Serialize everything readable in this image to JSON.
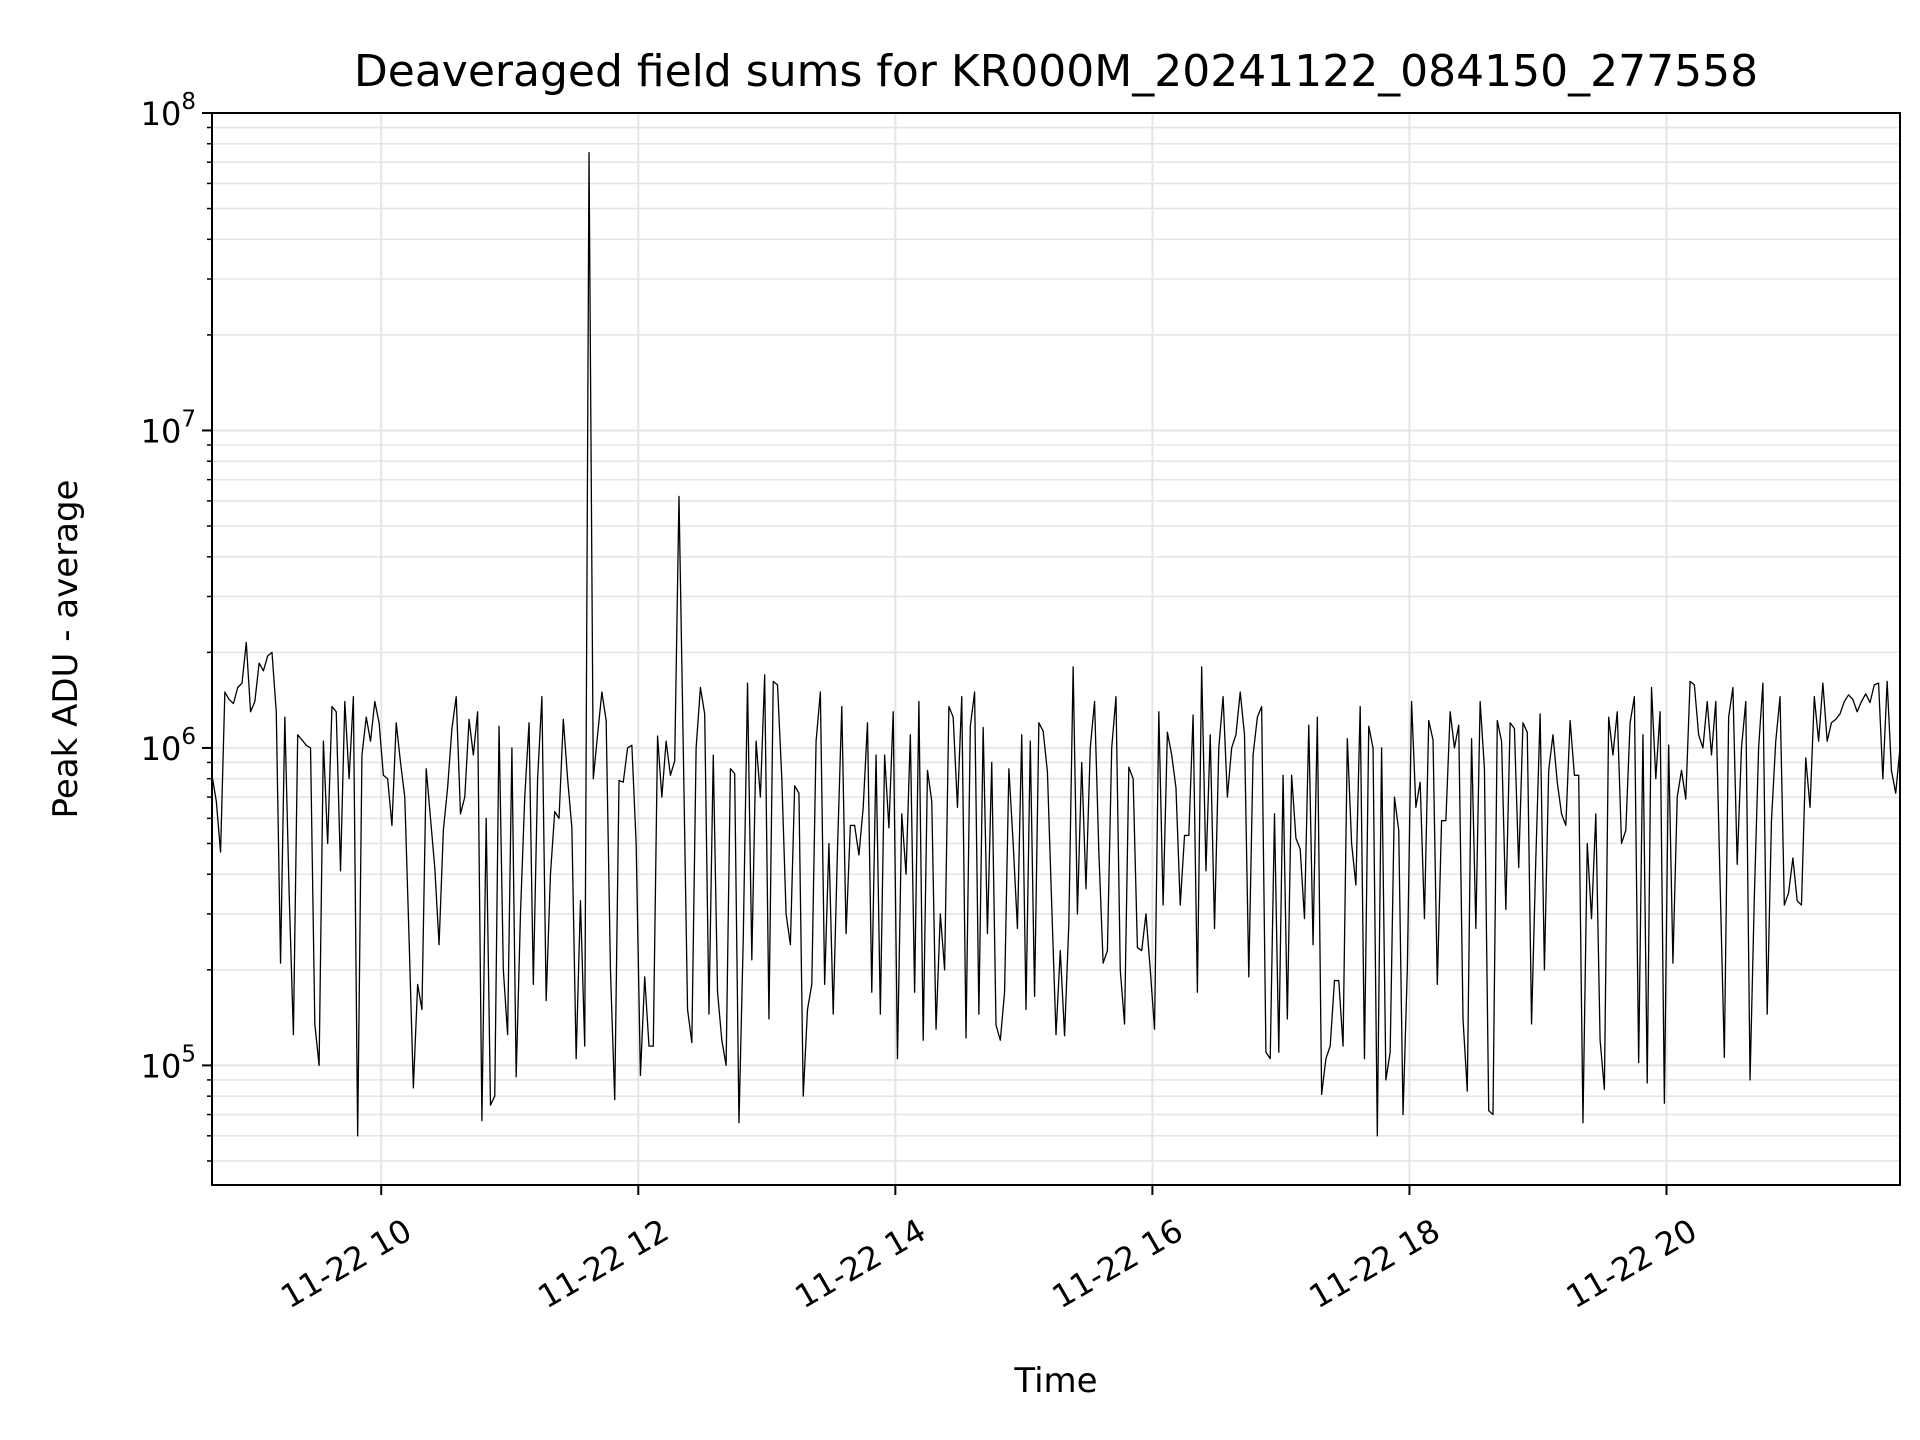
{
  "chart_data": {
    "type": "line",
    "title": "Deaveraged field sums for KR000M_20241122_084150_277558",
    "xlabel": "Time",
    "ylabel": "Peak ADU - average",
    "y_scale": "log",
    "ylim": [
      42000,
      100000000
    ],
    "xlim": [
      "2024-11-22 08:41",
      "2024-11-22 21:49"
    ],
    "grid": true,
    "x_ticks": [
      {
        "x": "2024-11-22 10:00",
        "label": "11-22 10"
      },
      {
        "x": "2024-11-22 12:00",
        "label": "11-22 12"
      },
      {
        "x": "2024-11-22 14:00",
        "label": "11-22 14"
      },
      {
        "x": "2024-11-22 16:00",
        "label": "11-22 16"
      },
      {
        "x": "2024-11-22 18:00",
        "label": "11-22 18"
      },
      {
        "x": "2024-11-22 20:00",
        "label": "11-22 20"
      }
    ],
    "y_ticks": [
      {
        "y": 100000,
        "base": "10",
        "exp": "5"
      },
      {
        "y": 1000000,
        "base": "10",
        "exp": "6"
      },
      {
        "y": 10000000,
        "base": "10",
        "exp": "7"
      },
      {
        "y": 100000000,
        "base": "10",
        "exp": "8"
      }
    ],
    "line_color": "#000000",
    "grid_color": "#e5e5e5",
    "series": [
      {
        "x_start": "2024-11-22 08:41",
        "x_end": "2024-11-22 21:49",
        "values": [
          820000,
          680000,
          470000,
          1500000,
          1420000,
          1380000,
          1550000,
          1600000,
          2150000,
          1300000,
          1400000,
          1850000,
          1750000,
          1950000,
          2000000,
          1300000,
          210000,
          1250000,
          350000,
          125000,
          1100000,
          1060000,
          1020000,
          1000000,
          135000,
          100000,
          1050000,
          500000,
          1350000,
          1300000,
          410000,
          1400000,
          800000,
          1450000,
          60000,
          950000,
          1250000,
          1050000,
          1400000,
          1200000,
          820000,
          800000,
          570000,
          1200000,
          900000,
          700000,
          250000,
          85000,
          180000,
          150000,
          860000,
          600000,
          420000,
          240000,
          550000,
          750000,
          1150000,
          1450000,
          620000,
          700000,
          1230000,
          950000,
          1300000,
          67000,
          600000,
          75000,
          80000,
          1170000,
          200000,
          125000,
          1000000,
          92000,
          300000,
          700000,
          1200000,
          180000,
          800000,
          1450000,
          160000,
          400000,
          630000,
          600000,
          1230000,
          800000,
          560000,
          105000,
          330000,
          115000,
          75000000,
          800000,
          1100000,
          1500000,
          1220000,
          200000,
          78000,
          790000,
          780000,
          1000000,
          1020000,
          500000,
          93000,
          190000,
          115000,
          115000,
          1090000,
          700000,
          1050000,
          820000,
          910000,
          6200000,
          1000000,
          150000,
          118000,
          1000000,
          1550000,
          1280000,
          145000,
          950000,
          170000,
          120000,
          100000,
          860000,
          830000,
          66000,
          250000,
          1600000,
          215000,
          1050000,
          700000,
          1700000,
          140000,
          1620000,
          1580000,
          800000,
          300000,
          240000,
          760000,
          720000,
          80000,
          150000,
          180000,
          1050000,
          1500000,
          180000,
          500000,
          145000,
          480000,
          1350000,
          260000,
          570000,
          570000,
          460000,
          650000,
          1200000,
          170000,
          950000,
          145000,
          950000,
          560000,
          1300000,
          105000,
          620000,
          400000,
          1100000,
          170000,
          1400000,
          120000,
          850000,
          680000,
          130000,
          300000,
          200000,
          1350000,
          1250000,
          650000,
          1450000,
          122000,
          1170000,
          1500000,
          145000,
          1160000,
          260000,
          900000,
          134000,
          120000,
          170000,
          860000,
          500000,
          270000,
          1100000,
          150000,
          1050000,
          165000,
          1200000,
          1130000,
          840000,
          320000,
          125000,
          230000,
          124000,
          280000,
          1800000,
          300000,
          900000,
          360000,
          1000000,
          1400000,
          470000,
          210000,
          230000,
          1000000,
          1450000,
          200000,
          135000,
          870000,
          800000,
          235000,
          230000,
          300000,
          200000,
          130000,
          1300000,
          320000,
          1120000,
          950000,
          750000,
          320000,
          530000,
          530000,
          1270000,
          170000,
          1800000,
          410000,
          1100000,
          270000,
          1000000,
          1450000,
          700000,
          1000000,
          1100000,
          1500000,
          1100000,
          190000,
          950000,
          1250000,
          1350000,
          110000,
          105000,
          620000,
          110000,
          820000,
          140000,
          820000,
          520000,
          480000,
          290000,
          1180000,
          240000,
          1250000,
          81000,
          105000,
          115000,
          185000,
          185000,
          115000,
          1070000,
          500000,
          370000,
          1350000,
          105000,
          1170000,
          1000000,
          60000,
          1000000,
          90000,
          110000,
          700000,
          550000,
          70000,
          200000,
          1400000,
          650000,
          780000,
          290000,
          1220000,
          1060000,
          180000,
          590000,
          590000,
          1300000,
          1000000,
          1180000,
          140000,
          83000,
          1070000,
          270000,
          1400000,
          860000,
          72000,
          70000,
          1220000,
          1050000,
          310000,
          1200000,
          1150000,
          420000,
          1200000,
          1120000,
          135000,
          450000,
          1280000,
          200000,
          850000,
          1100000,
          780000,
          620000,
          570000,
          1220000,
          820000,
          820000,
          66000,
          500000,
          290000,
          620000,
          120000,
          84000,
          1250000,
          950000,
          1300000,
          500000,
          550000,
          1200000,
          1450000,
          102000,
          1100000,
          88000,
          1550000,
          800000,
          1300000,
          76000,
          1020000,
          210000,
          700000,
          850000,
          690000,
          1620000,
          1580000,
          1100000,
          1000000,
          1400000,
          950000,
          1400000,
          380000,
          106000,
          1250000,
          1550000,
          430000,
          1000000,
          1400000,
          90000,
          340000,
          1000000,
          1600000,
          145000,
          590000,
          1050000,
          1450000,
          320000,
          350000,
          450000,
          330000,
          320000,
          930000,
          650000,
          1450000,
          1050000,
          1600000,
          1050000,
          1200000,
          1230000,
          1280000,
          1400000,
          1470000,
          1420000,
          1300000,
          1400000,
          1480000,
          1390000,
          1580000,
          1600000,
          800000,
          1620000,
          850000,
          720000,
          1000000
        ]
      }
    ]
  }
}
